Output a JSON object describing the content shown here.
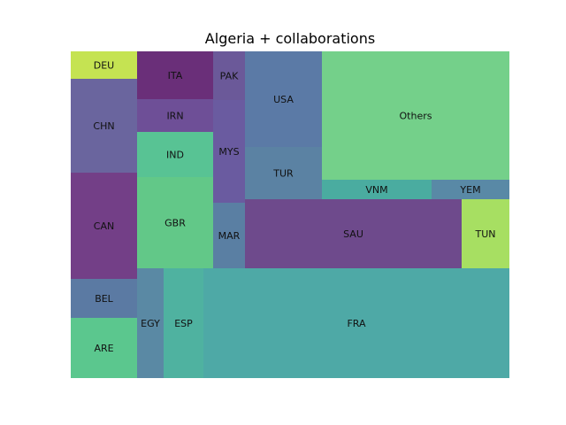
{
  "chart_data": {
    "type": "treemap",
    "title": "Algeria + collaborations",
    "cells": [
      {
        "label": "DEU",
        "value": 1.0,
        "color": "#c5e352"
      },
      {
        "label": "CHN",
        "value": 3.5,
        "color": "#6a659e"
      },
      {
        "label": "CAN",
        "value": 4.0,
        "color": "#733f87"
      },
      {
        "label": "BEL",
        "value": 1.5,
        "color": "#5b7aa3"
      },
      {
        "label": "ARE",
        "value": 2.3,
        "color": "#5bc78e"
      },
      {
        "label": "ITA",
        "value": 2.2,
        "color": "#6a2f79"
      },
      {
        "label": "IRN",
        "value": 1.5,
        "color": "#6e4f97"
      },
      {
        "label": "IND",
        "value": 2.1,
        "color": "#58c394"
      },
      {
        "label": "GBR",
        "value": 4.2,
        "color": "#62c888"
      },
      {
        "label": "PAK",
        "value": 1.0,
        "color": "#6b5999"
      },
      {
        "label": "MYS",
        "value": 2.4,
        "color": "#6a5ba0"
      },
      {
        "label": "MAR",
        "value": 1.2,
        "color": "#5a7fa3"
      },
      {
        "label": "USA",
        "value": 5.0,
        "color": "#5b7aa6"
      },
      {
        "label": "TUR",
        "value": 2.8,
        "color": "#5b82a3"
      },
      {
        "label": "Others",
        "value": 14.5,
        "color": "#74d08a"
      },
      {
        "label": "VNM",
        "value": 1.2,
        "color": "#4aaca0"
      },
      {
        "label": "YEM",
        "value": 0.8,
        "color": "#5989a6"
      },
      {
        "label": "SAU",
        "value": 9.0,
        "color": "#6e4a8c"
      },
      {
        "label": "TUN",
        "value": 2.0,
        "color": "#a7df62"
      },
      {
        "label": "EGY",
        "value": 1.4,
        "color": "#5a89a4"
      },
      {
        "label": "ESP",
        "value": 2.1,
        "color": "#4fb2a0"
      },
      {
        "label": "FRA",
        "value": 16.2,
        "color": "#4ea9a6"
      }
    ]
  }
}
